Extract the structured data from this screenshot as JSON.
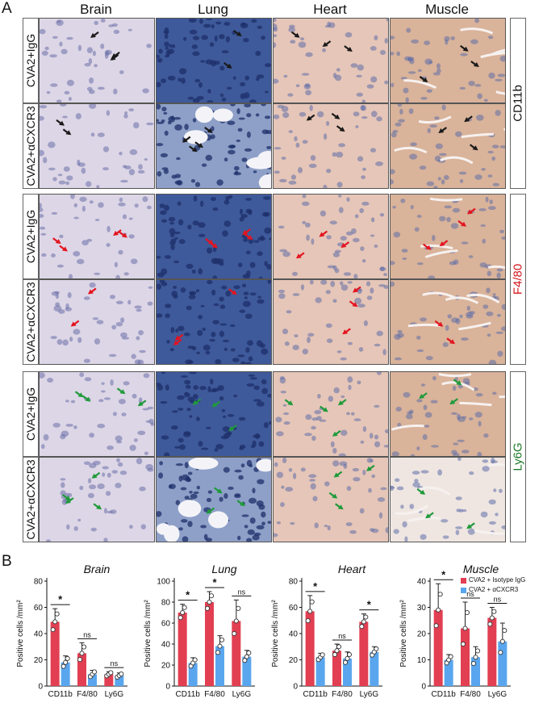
{
  "panel_a_label": "A",
  "panel_b_label": "B",
  "columns": [
    "Brain",
    "Lung",
    "Heart",
    "Muscle"
  ],
  "row_labels": [
    "CVA2+IgG",
    "CVA2+αCXCR3",
    "CVA2+IgG",
    "CVA2+αCXCR3",
    "CVA2+IgG",
    "CVA2+αCXCR3"
  ],
  "markers": [
    {
      "name": "CD11b",
      "color": "#111111"
    },
    {
      "name": "F4/80",
      "color": "#d4141b"
    },
    {
      "name": "Ly6G",
      "color": "#1f7a2a"
    }
  ],
  "tissue_colors": {
    "brain": "#ddd6e6",
    "lung": "#3f5a9a",
    "heart": "#e6c6b8",
    "muscle": "#d9b39a"
  },
  "arrow_colors": {
    "CD11b": "#1a1a1a",
    "F4/80": "#e3141f",
    "Ly6G": "#1f9a3a"
  },
  "legend": {
    "items": [
      {
        "label": "CVA2 + Isotype IgG",
        "color": "#e23f52"
      },
      {
        "label": "CVA2 + αCXCR3",
        "color": "#5aa6ee"
      }
    ]
  },
  "chart_data": [
    {
      "type": "bar",
      "title": "Brain",
      "ylabel": "Positive cells /mm²",
      "ylim": [
        0,
        80
      ],
      "yticks": [
        0,
        20,
        40,
        60,
        80
      ],
      "categories": [
        "CD11b",
        "F4/80",
        "Ly6G"
      ],
      "series": [
        {
          "name": "CVA2 + Isotype IgG",
          "values": [
            49,
            25,
            9
          ],
          "err": [
            10,
            8,
            2
          ]
        },
        {
          "name": "CVA2 + αCXCR3",
          "values": [
            18,
            9,
            8
          ],
          "err": [
            5,
            3,
            2
          ]
        }
      ],
      "significance": [
        "*",
        "ns",
        "ns"
      ]
    },
    {
      "type": "bar",
      "title": "Lung",
      "ylabel": "Positive cells /mm²",
      "ylim": [
        0,
        100
      ],
      "yticks": [
        0,
        20,
        40,
        60,
        80,
        100
      ],
      "categories": [
        "CD11b",
        "F4/80",
        "Ly6G"
      ],
      "series": [
        {
          "name": "CVA2 + Isotype IgG",
          "values": [
            70,
            80,
            62
          ],
          "err": [
            8,
            10,
            20
          ]
        },
        {
          "name": "CVA2 + αCXCR3",
          "values": [
            22,
            38,
            28
          ],
          "err": [
            5,
            10,
            6
          ]
        }
      ],
      "significance": [
        "*",
        "*",
        "ns"
      ]
    },
    {
      "type": "bar",
      "title": "Heart",
      "ylabel": "Positive cells /mm²",
      "ylim": [
        0,
        80
      ],
      "yticks": [
        0,
        20,
        40,
        60,
        80
      ],
      "categories": [
        "CD11b",
        "F4/80",
        "Ly6G"
      ],
      "series": [
        {
          "name": "CVA2 + Isotype IgG",
          "values": [
            57,
            27,
            49
          ],
          "err": [
            12,
            5,
            6
          ]
        },
        {
          "name": "CVA2 + αCXCR3",
          "values": [
            22,
            21,
            26
          ],
          "err": [
            3,
            5,
            4
          ]
        }
      ],
      "significance": [
        "*",
        "ns",
        "*"
      ]
    },
    {
      "type": "bar",
      "title": "Muscle",
      "ylabel": "Positive cells /mm²",
      "ylim": [
        0,
        40
      ],
      "yticks": [
        0,
        10,
        20,
        30,
        40
      ],
      "categories": [
        "CD11b",
        "F4/80",
        "Ly6G"
      ],
      "series": [
        {
          "name": "CVA2 + Isotype IgG",
          "values": [
            29,
            22,
            26
          ],
          "err": [
            10,
            10,
            4
          ]
        },
        {
          "name": "CVA2 + αCXCR3",
          "values": [
            10,
            11,
            17
          ],
          "err": [
            2,
            4,
            7
          ]
        }
      ],
      "significance": [
        "*",
        "ns",
        "ns"
      ]
    }
  ]
}
